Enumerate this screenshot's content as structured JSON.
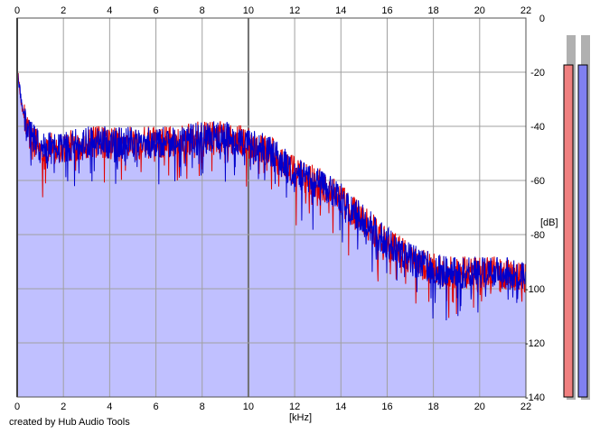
{
  "credit": "created by Hub Audio Tools",
  "colors": {
    "left_channel": "#e00000",
    "right_channel": "#0000cc",
    "fill": "#c0c0ff",
    "grid": "#a0a0a0",
    "meter_left": "#f08080",
    "meter_right": "#8080f0"
  },
  "chart_data": {
    "type": "area",
    "xlabel": "[kHz]",
    "ylabel": "[dB]",
    "xlim": [
      0,
      22
    ],
    "ylim": [
      -140,
      0
    ],
    "x_ticks": [
      "0",
      "2",
      "4",
      "6",
      "8",
      "10",
      "12",
      "14",
      "16",
      "18",
      "20",
      "22"
    ],
    "y_ticks": [
      "0",
      "-20",
      "-40",
      "-60",
      "-80",
      "-100",
      "-120",
      "-140"
    ],
    "grid": true,
    "x_axis_labels_position": "top and bottom",
    "y_axis_labels_position": "right",
    "envelope_x_khz": [
      0,
      0.1,
      0.25,
      0.5,
      1,
      2,
      3,
      4,
      5,
      6,
      7,
      8,
      9,
      10,
      11,
      12,
      13,
      13.5,
      14,
      15,
      16,
      17,
      18,
      19,
      20,
      21,
      22
    ],
    "envelope_db": [
      -20,
      -25,
      -35,
      -43,
      -48,
      -48,
      -46,
      -46,
      -46,
      -46,
      -45,
      -44,
      -44,
      -46,
      -50,
      -57,
      -61,
      -63,
      -67,
      -75,
      -83,
      -89,
      -93,
      -94,
      -94,
      -94,
      -96
    ],
    "series": [
      {
        "name": "",
        "channel": "left",
        "color": "#e00000"
      },
      {
        "name": "",
        "channel": "right",
        "color": "#0000cc"
      }
    ],
    "level_meters": [
      {
        "channel": "left",
        "level_db": -5,
        "color": "#f08080"
      },
      {
        "channel": "right",
        "level_db": -5,
        "color": "#8080f0"
      }
    ]
  }
}
